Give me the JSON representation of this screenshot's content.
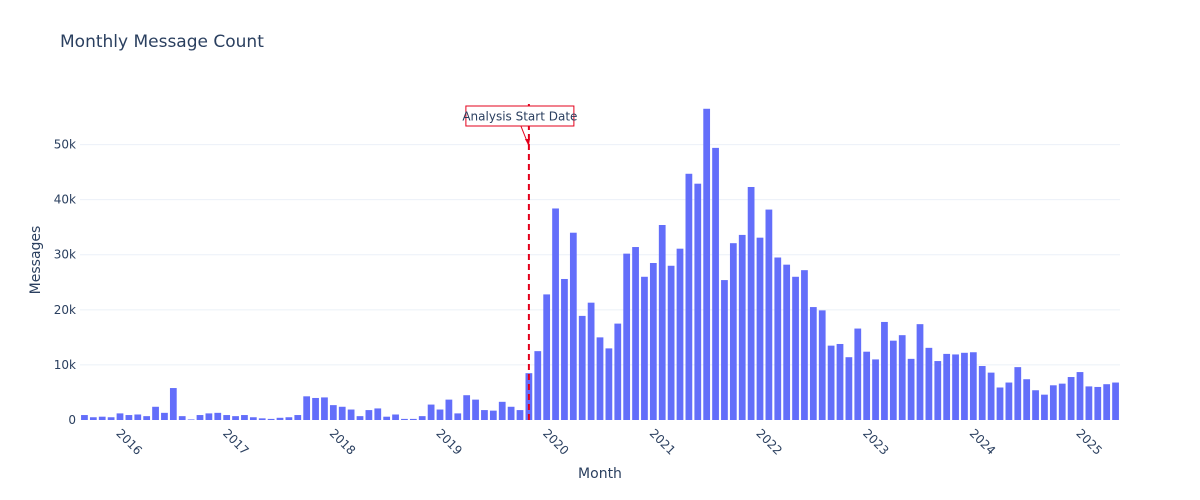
{
  "chart_data": {
    "type": "bar",
    "title": "Monthly Message Count",
    "xlabel": "Month",
    "ylabel": "Messages",
    "ylim": [
      0,
      59000
    ],
    "y_ticks": [
      0,
      10000,
      20000,
      30000,
      40000,
      50000
    ],
    "y_tick_labels": [
      "0",
      "10k",
      "20k",
      "30k",
      "40k",
      "50k"
    ],
    "x_ticks": [
      "2016-01",
      "2017-01",
      "2018-01",
      "2019-01",
      "2020-01",
      "2021-01",
      "2022-01",
      "2023-01",
      "2024-01",
      "2025-01"
    ],
    "x_tick_labels": [
      "2016",
      "2017",
      "2018",
      "2019",
      "2020",
      "2021",
      "2022",
      "2023",
      "2024",
      "2025"
    ],
    "grid": true,
    "bar_color": "#636efa",
    "categories": [
      "2015-09",
      "2015-10",
      "2015-11",
      "2015-12",
      "2016-01",
      "2016-02",
      "2016-03",
      "2016-04",
      "2016-05",
      "2016-06",
      "2016-07",
      "2016-08",
      "2016-09",
      "2016-10",
      "2016-11",
      "2016-12",
      "2017-01",
      "2017-02",
      "2017-03",
      "2017-04",
      "2017-05",
      "2017-06",
      "2017-07",
      "2017-08",
      "2017-09",
      "2017-10",
      "2017-11",
      "2017-12",
      "2018-01",
      "2018-02",
      "2018-03",
      "2018-04",
      "2018-05",
      "2018-06",
      "2018-07",
      "2018-08",
      "2018-09",
      "2018-10",
      "2018-11",
      "2018-12",
      "2019-01",
      "2019-02",
      "2019-03",
      "2019-04",
      "2019-05",
      "2019-06",
      "2019-07",
      "2019-08",
      "2019-09",
      "2019-10",
      "2019-11",
      "2019-12",
      "2020-01",
      "2020-02",
      "2020-03",
      "2020-04",
      "2020-05",
      "2020-06",
      "2020-07",
      "2020-08",
      "2020-09",
      "2020-10",
      "2020-11",
      "2020-12",
      "2021-01",
      "2021-02",
      "2021-03",
      "2021-04",
      "2021-05",
      "2021-06",
      "2021-07",
      "2021-08",
      "2021-09",
      "2021-10",
      "2021-11",
      "2021-12",
      "2022-01",
      "2022-02",
      "2022-03",
      "2022-04",
      "2022-05",
      "2022-06",
      "2022-07",
      "2022-08",
      "2022-09",
      "2022-10",
      "2022-11",
      "2022-12",
      "2023-01",
      "2023-02",
      "2023-03",
      "2023-04",
      "2023-05",
      "2023-06",
      "2023-07",
      "2023-08",
      "2023-09",
      "2023-10",
      "2023-11",
      "2023-12",
      "2024-01",
      "2024-02",
      "2024-03",
      "2024-04",
      "2024-05",
      "2024-06",
      "2024-07",
      "2024-08",
      "2024-09",
      "2024-10",
      "2024-11",
      "2024-12",
      "2025-01",
      "2025-02",
      "2025-03",
      "2025-04",
      "2025-05"
    ],
    "values": [
      900,
      500,
      600,
      500,
      1200,
      900,
      1000,
      700,
      2400,
      1300,
      5800,
      700,
      100,
      900,
      1200,
      1300,
      900,
      700,
      900,
      500,
      300,
      200,
      400,
      500,
      900,
      4300,
      4000,
      4100,
      2700,
      2400,
      1900,
      700,
      1800,
      2100,
      600,
      1000,
      200,
      200,
      700,
      2800,
      1900,
      3700,
      1200,
      4500,
      3700,
      1800,
      1700,
      3300,
      2400,
      1800,
      8500,
      12500,
      22800,
      38400,
      25600,
      34000,
      18900,
      21300,
      15000,
      13000,
      17500,
      30200,
      31400,
      26000,
      28500,
      35400,
      28000,
      31100,
      44700,
      42900,
      56500,
      49400,
      25400,
      32100,
      33600,
      42300,
      33100,
      38200,
      29500,
      28200,
      26000,
      27200,
      20500,
      19900,
      13500,
      13800,
      11400,
      16600,
      12400,
      11000,
      17800,
      14400,
      15400,
      11100,
      17400,
      13100,
      10700,
      12000,
      11900,
      12200,
      12300,
      9800,
      8600,
      5900,
      6800,
      9600,
      7400,
      5400,
      4600,
      6300,
      6600,
      7800,
      8700,
      6100,
      6000,
      6500,
      6800
    ],
    "annotation": {
      "text": "Analysis Start Date",
      "x": "2019-11",
      "line_color": "#e3001b"
    }
  }
}
